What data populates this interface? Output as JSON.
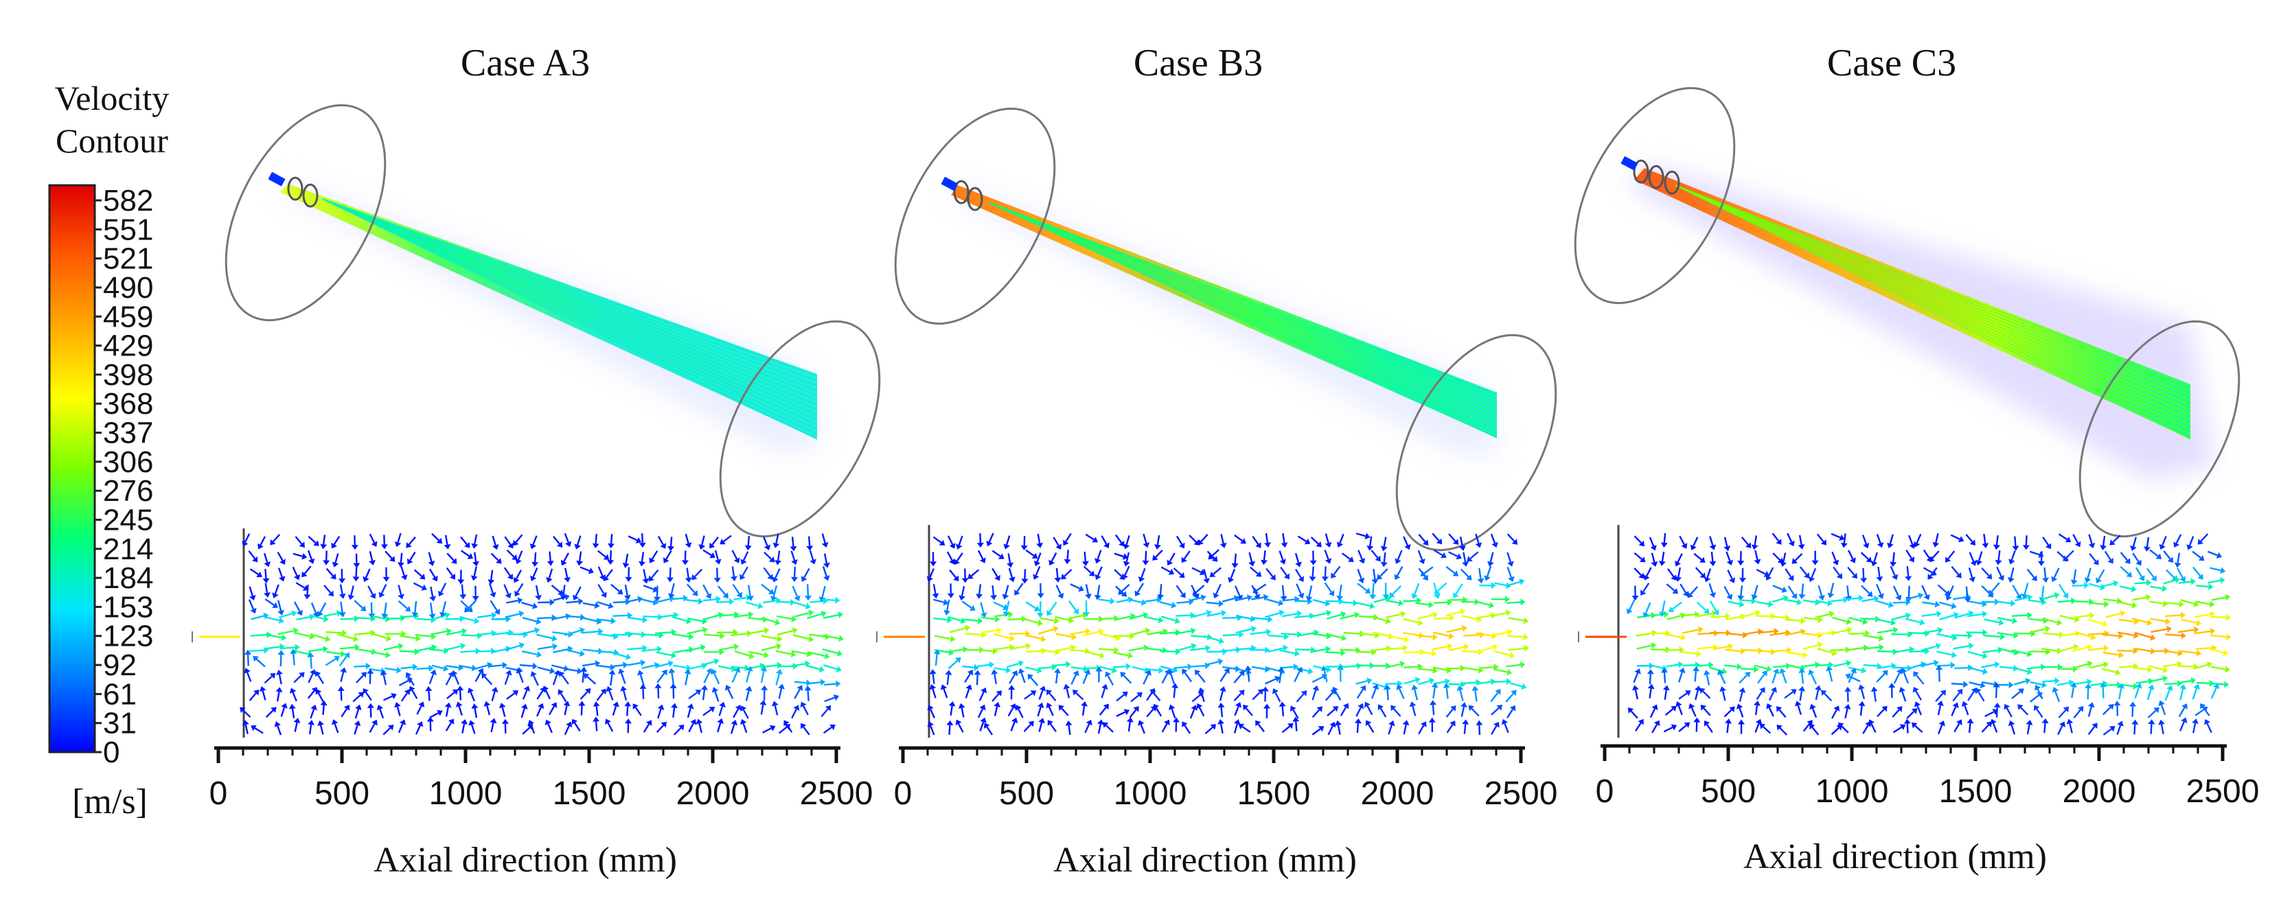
{
  "colorbar": {
    "title_line1": "Velocity",
    "title_line2": "Contour",
    "unit": "[m/s]",
    "ticks": [
      "582",
      "551",
      "521",
      "490",
      "459",
      "429",
      "398",
      "368",
      "337",
      "306",
      "276",
      "245",
      "214",
      "184",
      "153",
      "123",
      "92",
      "61",
      "31",
      "0"
    ],
    "colormap": [
      "#0000ff",
      "#0077ff",
      "#00e5ff",
      "#00ff7a",
      "#7aff00",
      "#ffff00",
      "#ffaa00",
      "#ff5a00",
      "#e00000"
    ]
  },
  "panels": [
    {
      "title": "Case A3",
      "axis_label": "Axial direction (mm)",
      "ticks": [
        "0",
        "500",
        "1000",
        "1500",
        "2000",
        "2500"
      ],
      "core_peak": 0.45,
      "core_width": 0.18
    },
    {
      "title": "Case B3",
      "axis_label": "Axial direction (mm)",
      "ticks": [
        "0",
        "500",
        "1000",
        "1500",
        "2000",
        "2500"
      ],
      "core_peak": 0.62,
      "core_width": 0.2
    },
    {
      "title": "Case C3",
      "axis_label": "Axial direction (mm)",
      "ticks": [
        "0",
        "500",
        "1000",
        "1500",
        "2000",
        "2500"
      ],
      "core_peak": 0.7,
      "core_width": 0.22
    }
  ]
}
